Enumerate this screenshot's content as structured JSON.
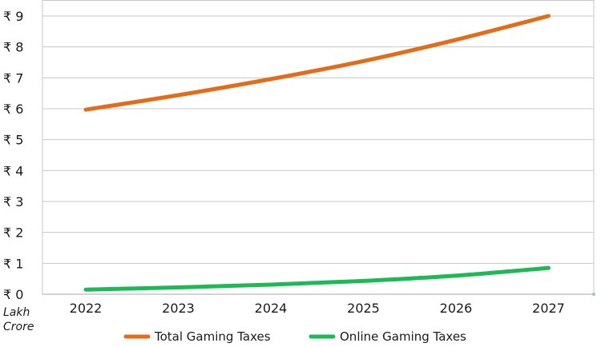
{
  "chart_data": {
    "type": "line",
    "title": "",
    "xlabel": "",
    "ylabel": "",
    "unit_label": [
      "Lakh",
      "Crore"
    ],
    "currency_symbol": "₹",
    "x": [
      "2022",
      "2023",
      "2024",
      "2025",
      "2026",
      "2027"
    ],
    "ylim": [
      0,
      9
    ],
    "yticks": [
      0,
      1,
      2,
      3,
      4,
      5,
      6,
      7,
      8,
      9
    ],
    "ytick_labels": [
      "₹ 0",
      "₹ 1",
      "₹ 2",
      "₹ 3",
      "₹ 4",
      "₹ 5",
      "₹ 6",
      "₹ 7",
      "₹ 8",
      "₹ 9"
    ],
    "grid": true,
    "legend_position": "bottom",
    "series": [
      {
        "name": "Total Gaming Taxes",
        "color": "#E36C1A",
        "values": [
          5.97,
          6.44,
          6.96,
          7.54,
          8.23,
          9.0
        ]
      },
      {
        "name": "Online Gaming Taxes",
        "color": "#1DB954",
        "values": [
          0.15,
          0.22,
          0.31,
          0.43,
          0.6,
          0.85
        ]
      }
    ]
  }
}
